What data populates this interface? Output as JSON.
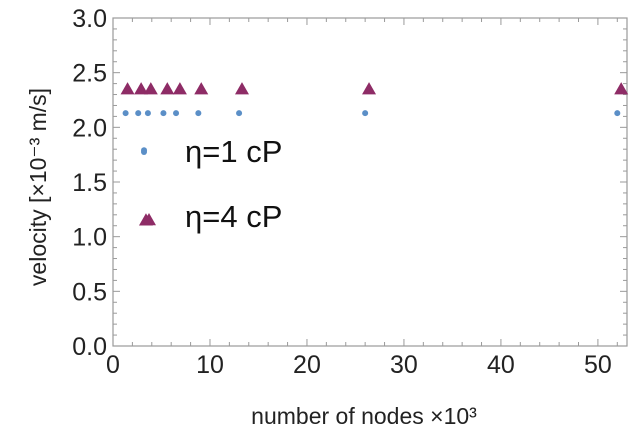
{
  "chart_data": {
    "type": "scatter",
    "xlabel": "number of nodes ×10³",
    "ylabel": "velocity [×10⁻³ m/s]",
    "xlim": [
      0,
      53
    ],
    "ylim": [
      0,
      3.0
    ],
    "x_ticks": [
      0,
      10,
      20,
      30,
      40,
      50
    ],
    "y_ticks": [
      "0.0",
      "0.5",
      "1.0",
      "1.5",
      "2.0",
      "2.5",
      "3.0"
    ],
    "grid": false,
    "legend_position": "center-left, inside plot",
    "series": [
      {
        "name": "η=1 cP",
        "marker": "circle",
        "color": "#5b8fc7",
        "points": [
          [
            1.3,
            2.13
          ],
          [
            2.6,
            2.13
          ],
          [
            3.2,
            1.79
          ],
          [
            3.6,
            2.13
          ],
          [
            5.2,
            2.13
          ],
          [
            6.5,
            2.13
          ],
          [
            8.8,
            2.13
          ],
          [
            13.0,
            2.13
          ],
          [
            26.0,
            2.13
          ],
          [
            52.0,
            2.13
          ]
        ]
      },
      {
        "name": "η=4 cP",
        "marker": "triangle",
        "color": "#8e2c66",
        "points": [
          [
            1.5,
            2.35
          ],
          [
            2.9,
            2.35
          ],
          [
            3.4,
            1.15
          ],
          [
            3.9,
            2.35
          ],
          [
            5.6,
            2.35
          ],
          [
            6.9,
            2.35
          ],
          [
            9.1,
            2.35
          ],
          [
            13.3,
            2.35
          ],
          [
            26.4,
            2.35
          ],
          [
            52.4,
            2.35
          ]
        ]
      }
    ]
  }
}
